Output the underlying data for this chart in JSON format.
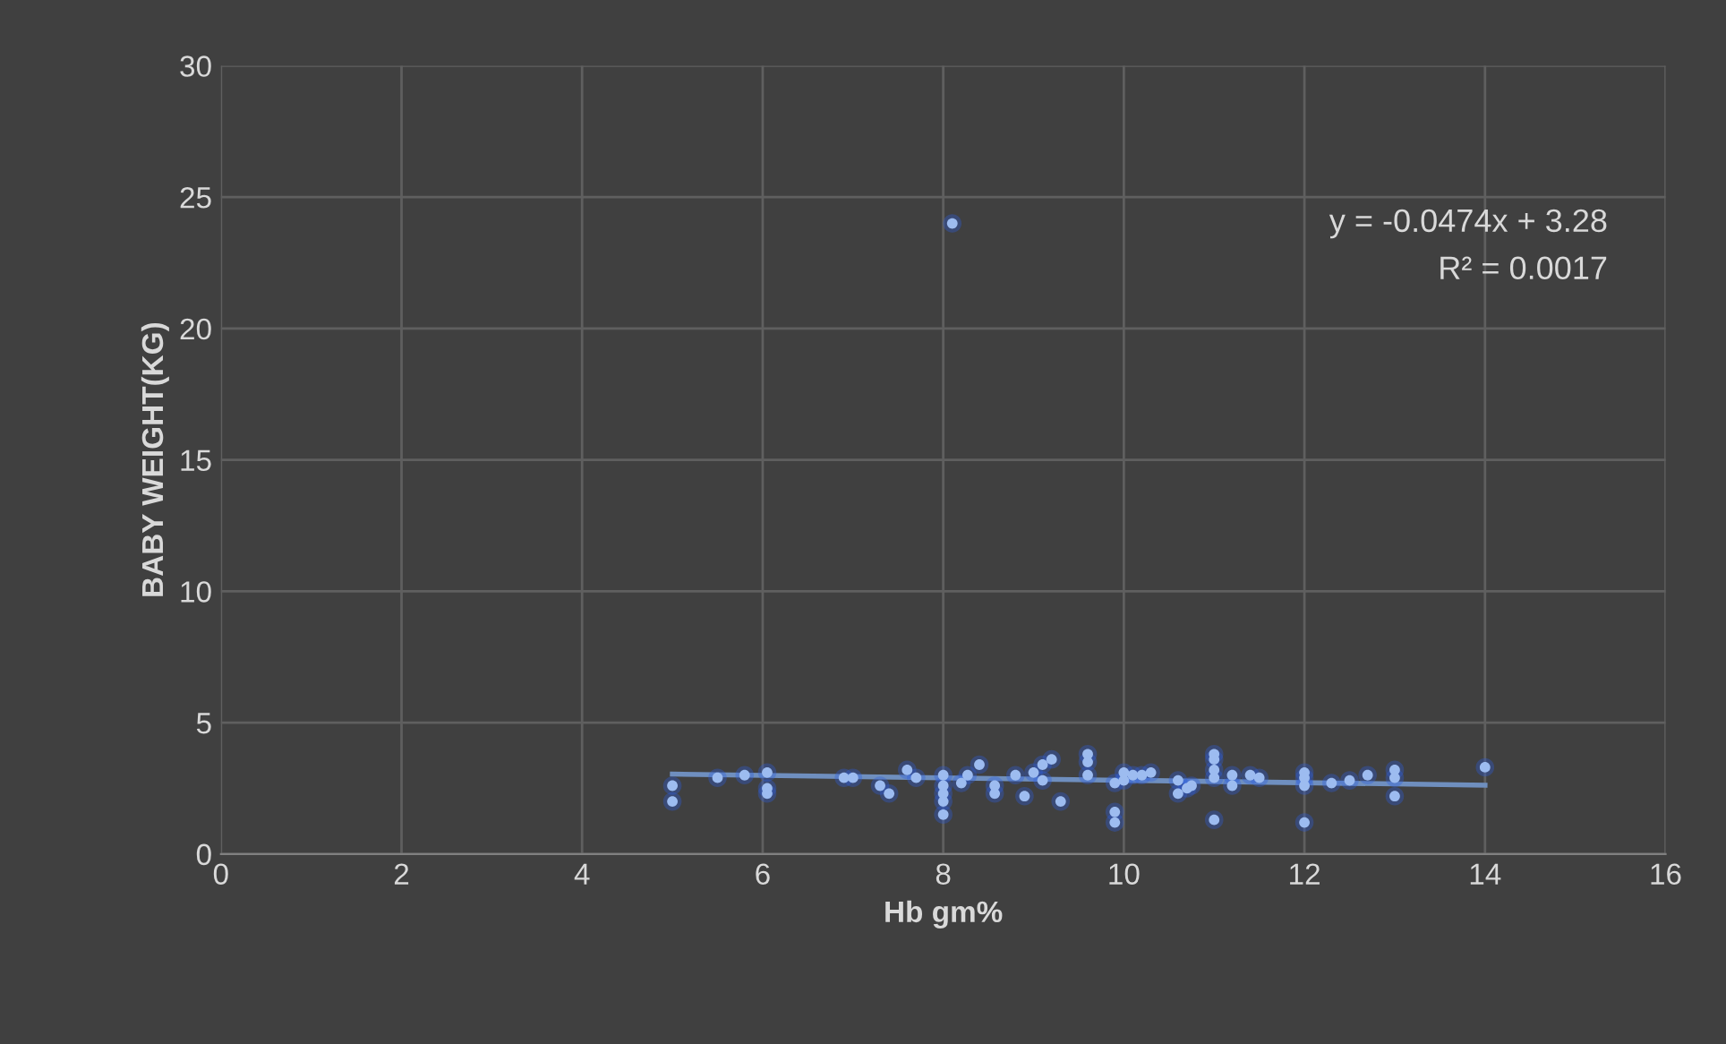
{
  "chart_data": {
    "type": "scatter",
    "xlabel": "Hb gm%",
    "ylabel": "BABY WEIGHT(KG)",
    "xlim": [
      0,
      16
    ],
    "xticks": [
      0,
      2,
      4,
      6,
      8,
      10,
      12,
      14,
      16
    ],
    "ylim": [
      0,
      30
    ],
    "yticks": [
      0,
      5,
      10,
      15,
      20,
      25,
      30
    ],
    "grid": true,
    "legend": false,
    "annotations": [
      "y = -0.0474x + 3.28",
      "R² = 0.0017"
    ],
    "series": [
      {
        "color": "#9dbcf0",
        "marker": "circle",
        "x": [
          5,
          5,
          5.5,
          5.8,
          6.05,
          6.05,
          6.05,
          6.9,
          7,
          7.3,
          7.4,
          7.6,
          7.7,
          8,
          8,
          8,
          8,
          8,
          8.1,
          8.2,
          8.27,
          8.4,
          8.57,
          8.57,
          8.8,
          8.9,
          9,
          9.1,
          9.1,
          9.2,
          9.3,
          9.6,
          9.6,
          9.6,
          9.9,
          9.9,
          9.9,
          10,
          10,
          10.1,
          10.2,
          10.3,
          10.6,
          10.6,
          10.7,
          10.75,
          11,
          11,
          11,
          11,
          11,
          11.2,
          11.2,
          11.4,
          11.5,
          12,
          12,
          12,
          12,
          12.3,
          12.5,
          12.7,
          13,
          13,
          13,
          14
        ],
        "values": [
          2.6,
          2.0,
          2.9,
          3.0,
          3.1,
          2.5,
          2.3,
          2.9,
          2.9,
          2.6,
          2.3,
          3.2,
          2.9,
          3.0,
          2.6,
          2.3,
          2.0,
          1.5,
          24,
          2.7,
          3.0,
          3.4,
          2.6,
          2.3,
          3.0,
          2.2,
          3.1,
          3.4,
          2.8,
          3.6,
          2.0,
          3.8,
          3.5,
          3.0,
          2.7,
          1.6,
          1.2,
          3.1,
          2.8,
          3.0,
          3.0,
          3.1,
          2.8,
          2.3,
          2.5,
          2.6,
          3.8,
          3.6,
          3.2,
          2.9,
          1.3,
          3.0,
          2.6,
          3.0,
          2.9,
          3.1,
          2.9,
          2.6,
          1.2,
          2.7,
          2.8,
          3.0,
          3.2,
          2.9,
          2.2,
          3.3
        ]
      },
      {
        "type": "line",
        "color": "#6f8fbf",
        "marker": "none",
        "x": [
          5,
          14
        ],
        "values": [
          3.04,
          2.62
        ]
      }
    ]
  }
}
